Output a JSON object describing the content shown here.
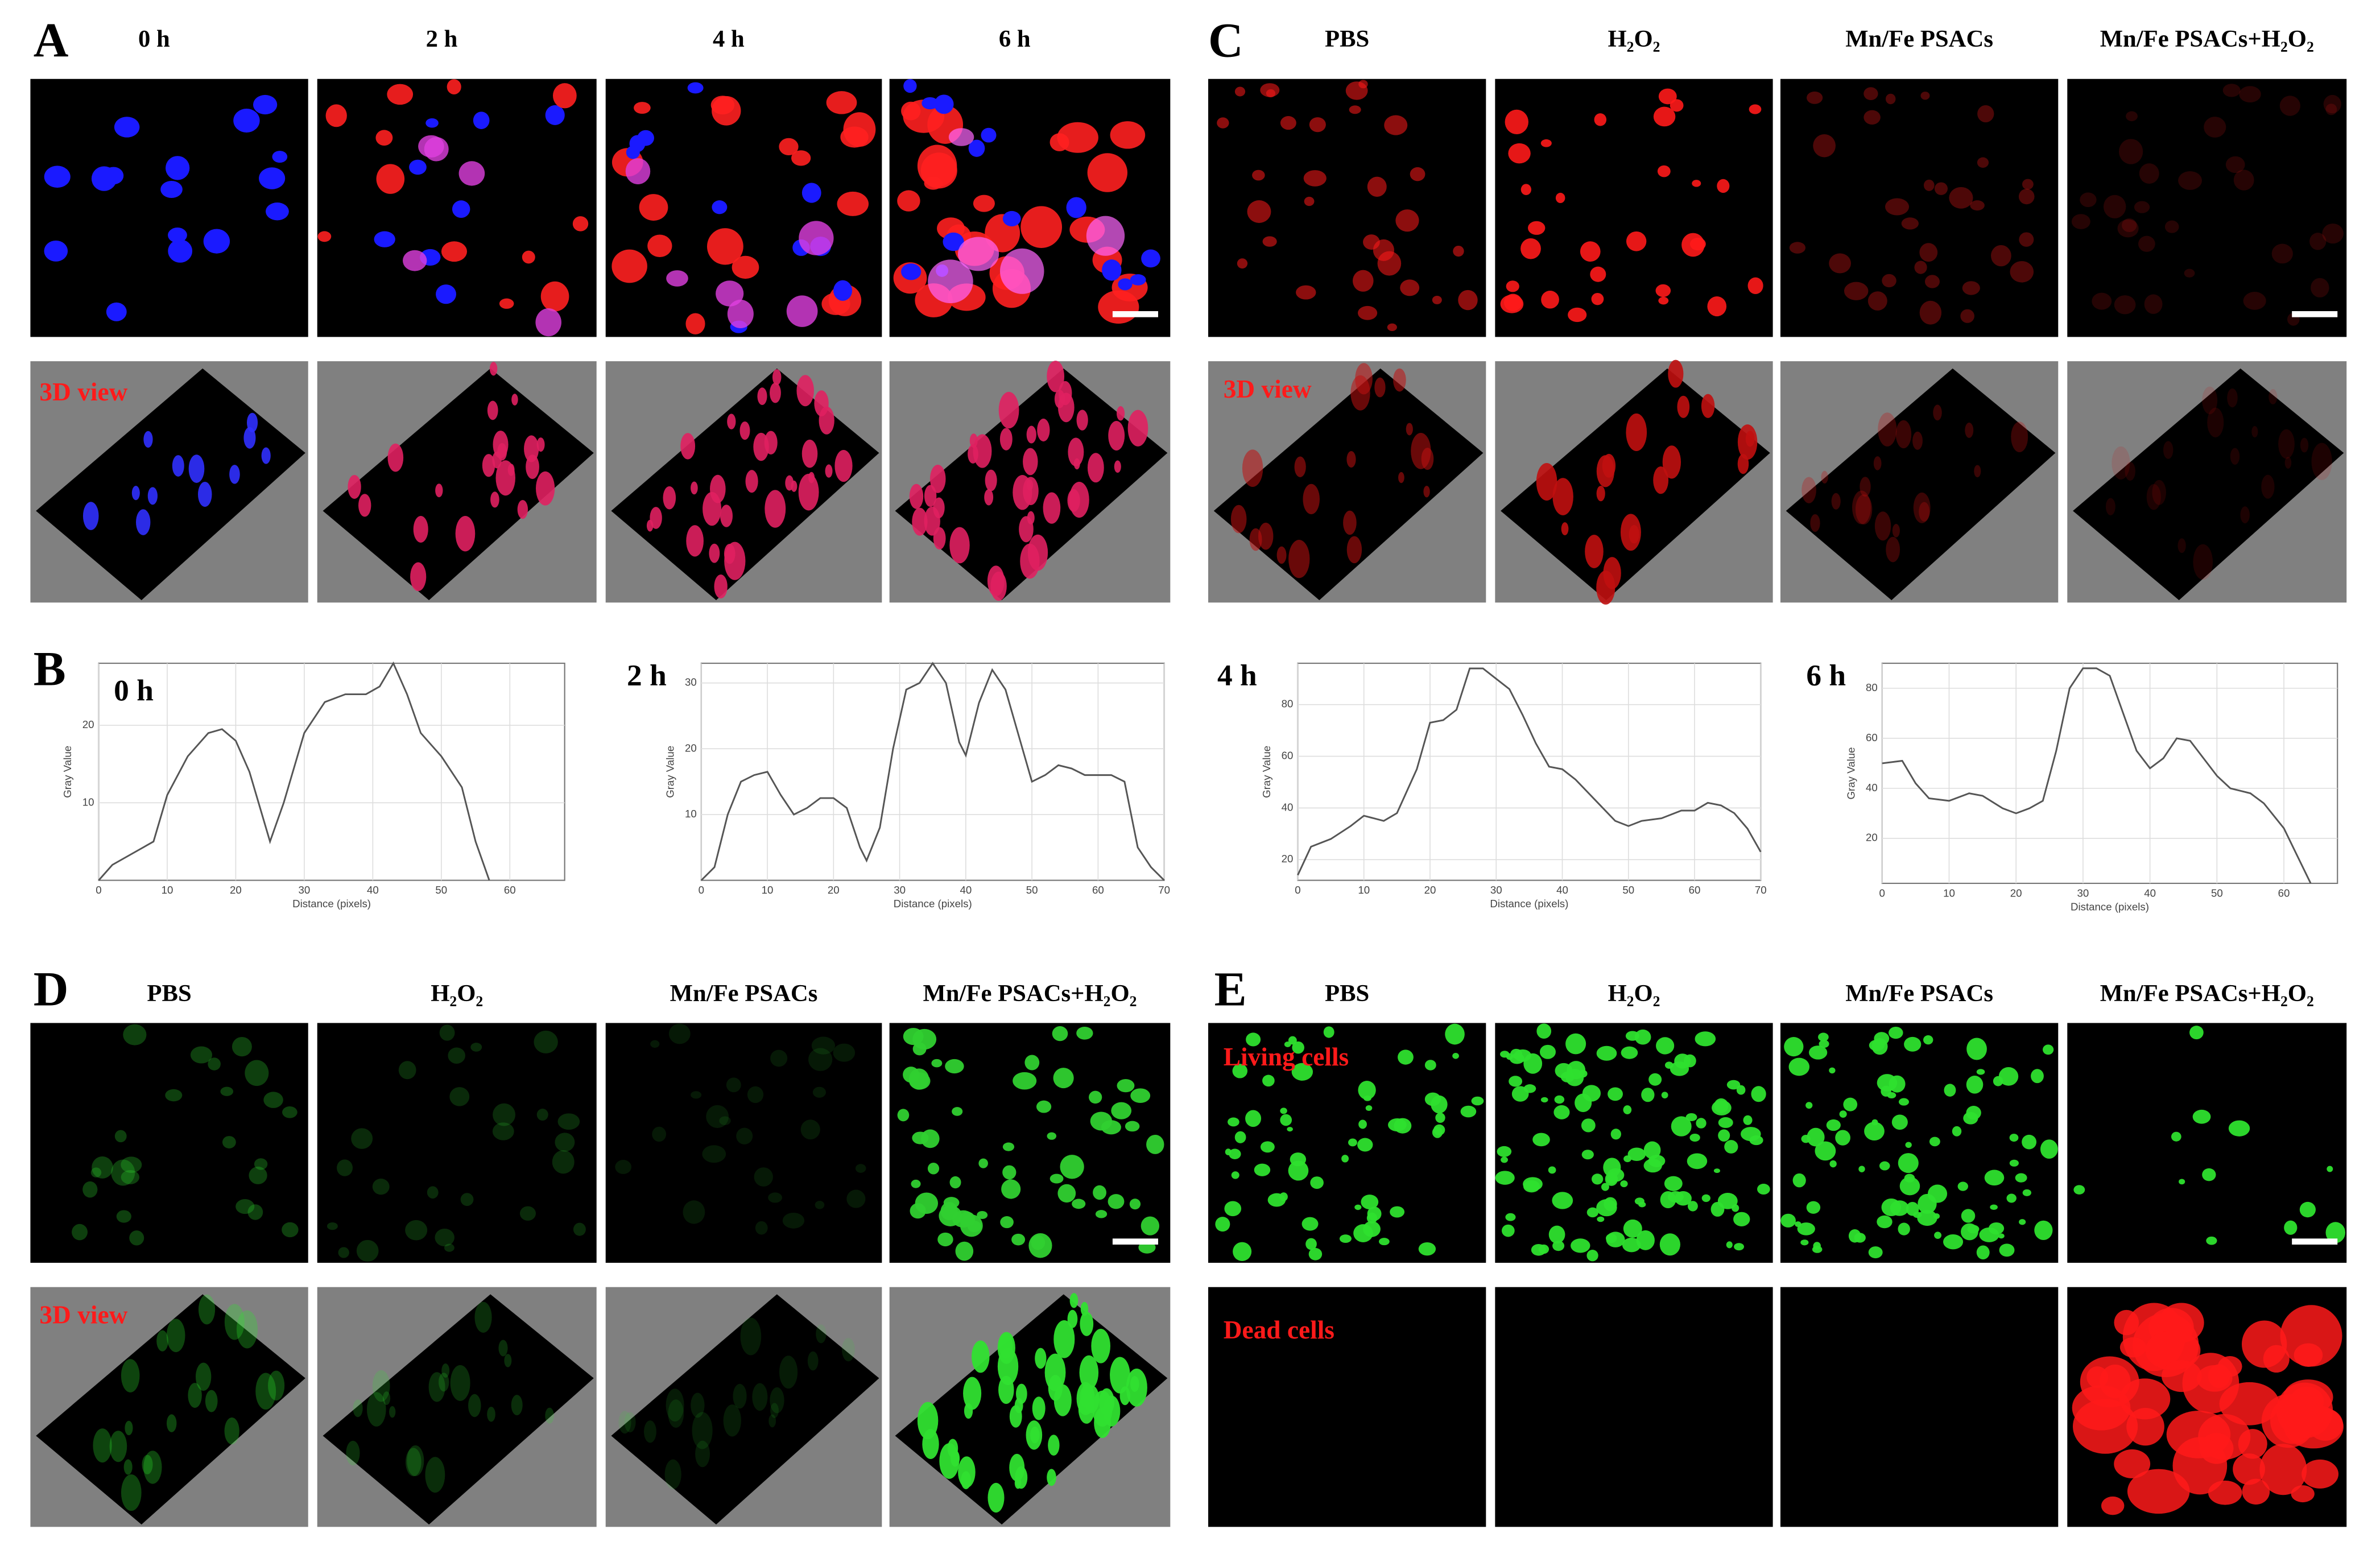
{
  "panel_labels": [
    "A",
    "B",
    "C",
    "D",
    "E"
  ],
  "panel_a": {
    "columns": [
      "0 h",
      "2 h",
      "4 h",
      "6 h"
    ],
    "overlay": "3D view"
  },
  "panel_c": {
    "columns": [
      "PBS",
      "H₂O₂",
      "Mn/Fe PSACs",
      "Mn/Fe PSACs+H₂O₂"
    ],
    "overlay": "3D view"
  },
  "panel_d": {
    "columns": [
      "PBS",
      "H₂O₂",
      "Mn/Fe PSACs",
      "Mn/Fe PSACs+H₂O₂"
    ],
    "overlay": "3D view"
  },
  "panel_e": {
    "columns": [
      "PBS",
      "H₂O₂",
      "Mn/Fe PSACs",
      "Mn/Fe PSACs+H₂O₂"
    ],
    "rows": [
      "Living cells",
      "Dead cells"
    ]
  },
  "chart_data": [
    {
      "type": "line",
      "title": "0 h",
      "x_label": "Distance (pixels)",
      "y_label": "Gray Value",
      "color": "#555555",
      "grid": true,
      "x": [
        0,
        2,
        4,
        6,
        8,
        10,
        13,
        16,
        18,
        20,
        22,
        24,
        25,
        27,
        30,
        33,
        36,
        39,
        41,
        43,
        45,
        47,
        50,
        53,
        55,
        57
      ],
      "values": [
        0,
        2,
        3,
        4,
        5,
        11,
        16,
        19,
        19.5,
        18,
        14,
        8,
        5,
        10,
        19,
        23,
        24,
        24,
        25,
        28,
        24,
        19,
        16,
        12,
        5,
        0
      ],
      "xlim": [
        0,
        68
      ],
      "ylim": [
        0,
        28
      ],
      "xticks": [
        0,
        10,
        20,
        30,
        40,
        50,
        60
      ],
      "yticks": [
        10,
        20
      ]
    },
    {
      "type": "line",
      "title": "2 h",
      "x_label": "Distance (pixels)",
      "y_label": "Gray Value",
      "color": "#555555",
      "grid": true,
      "x": [
        0,
        2,
        4,
        6,
        8,
        10,
        12,
        14,
        16,
        18,
        20,
        22,
        24,
        25,
        27,
        29,
        31,
        33,
        35,
        37,
        39,
        40,
        42,
        44,
        46,
        48,
        50,
        52,
        54,
        56,
        58,
        60,
        62,
        64,
        66,
        68,
        70
      ],
      "values": [
        0,
        2,
        10,
        15,
        16,
        16.5,
        13,
        10,
        11,
        12.5,
        12.5,
        11,
        5,
        3,
        8,
        20,
        29,
        30,
        33,
        30,
        21,
        19,
        27,
        32,
        29,
        22,
        15,
        16,
        17.5,
        17,
        16,
        16,
        16,
        15,
        5,
        2,
        0
      ],
      "xlim": [
        0,
        70
      ],
      "ylim": [
        0,
        33
      ],
      "xticks": [
        0,
        10,
        20,
        30,
        40,
        50,
        60,
        70
      ],
      "yticks": [
        10,
        20,
        30
      ]
    },
    {
      "type": "line",
      "title": "4 h",
      "x_label": "Distance (pixels)",
      "y_label": "Gray Value",
      "color": "#555555",
      "grid": true,
      "x": [
        0,
        2,
        5,
        8,
        10,
        13,
        15,
        18,
        20,
        22,
        24,
        26,
        28,
        30,
        32,
        34,
        36,
        38,
        40,
        42,
        45,
        48,
        50,
        52,
        55,
        58,
        60,
        62,
        64,
        66,
        68,
        70
      ],
      "values": [
        14,
        25,
        28,
        33,
        37,
        35,
        38,
        55,
        73,
        74,
        78,
        94,
        94,
        90,
        86,
        76,
        65,
        56,
        55,
        51,
        43,
        35,
        33,
        35,
        36,
        39,
        39,
        42,
        41,
        38,
        32,
        23
      ],
      "xlim": [
        0,
        70
      ],
      "ylim": [
        12,
        96
      ],
      "xticks": [
        0,
        10,
        20,
        30,
        40,
        50,
        60,
        70
      ],
      "yticks": [
        20,
        40,
        60,
        80
      ]
    },
    {
      "type": "line",
      "title": "6 h",
      "x_label": "Distance (pixels)",
      "y_label": "Gray Value",
      "color": "#555555",
      "grid": true,
      "x": [
        0,
        3,
        5,
        7,
        10,
        13,
        15,
        18,
        20,
        22,
        24,
        26,
        28,
        30,
        32,
        34,
        36,
        38,
        40,
        42,
        44,
        46,
        48,
        50,
        52,
        55,
        57,
        60,
        62,
        64
      ],
      "values": [
        50,
        51,
        42,
        36,
        35,
        38,
        37,
        32,
        30,
        32,
        35,
        55,
        80,
        88,
        88,
        85,
        70,
        55,
        48,
        52,
        60,
        59,
        52,
        45,
        40,
        38,
        34,
        24,
        13,
        2
      ],
      "xlim": [
        0,
        68
      ],
      "ylim": [
        2,
        90
      ],
      "xticks": [
        0,
        10,
        20,
        30,
        40,
        50,
        60
      ],
      "yticks": [
        20,
        40,
        60,
        80
      ]
    }
  ]
}
